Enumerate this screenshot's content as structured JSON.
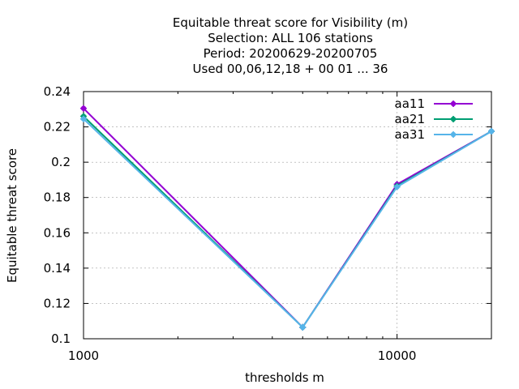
{
  "chart_data": {
    "type": "line",
    "title_lines": [
      "Equitable threat score  for Visibility (m)",
      "Selection: ALL    106 stations",
      "Period: 20200629-20200705",
      "Used  00,06,12,18 + 00 01 ... 36"
    ],
    "xlabel": "thresholds m",
    "ylabel": "Equitable threat score",
    "x_scale": "log",
    "xlim": [
      1000,
      20000
    ],
    "ylim": [
      0.1,
      0.24
    ],
    "x_ticks_major": [
      1000,
      10000
    ],
    "x_tick_labels": [
      "1000",
      "10000"
    ],
    "y_ticks": [
      0.1,
      0.12,
      0.14,
      0.16,
      0.18,
      0.2,
      0.22,
      0.24
    ],
    "y_tick_labels": [
      "0.1",
      "0.12",
      "0.14",
      "0.16",
      "0.18",
      "0.2",
      "0.22",
      "0.24"
    ],
    "grid": true,
    "legend_position": "top-right",
    "x": [
      1000,
      5000,
      10000,
      20000
    ],
    "series": [
      {
        "name": "aa11",
        "color": "#9400d3",
        "values": [
          0.2305,
          0.1065,
          0.1875,
          0.2175
        ]
      },
      {
        "name": "aa21",
        "color": "#009e73",
        "values": [
          0.226,
          0.1065,
          0.1865,
          0.2175
        ]
      },
      {
        "name": "aa31",
        "color": "#56b4e9",
        "values": [
          0.2245,
          0.1065,
          0.186,
          0.2175
        ]
      }
    ]
  }
}
